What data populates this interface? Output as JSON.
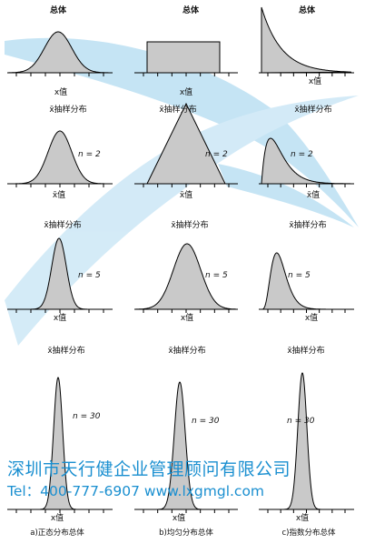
{
  "figure": {
    "columns": [
      {
        "population_label": "总体",
        "caption": "a)正态分布总体"
      },
      {
        "population_label": "总体",
        "caption": "b)均匀分布总体"
      },
      {
        "population_label": "总体",
        "caption": "c)指数分布总体"
      }
    ],
    "rows": [
      {
        "title": "总体",
        "axis_label": "x值"
      },
      {
        "title": "x̄抽样分布",
        "axis_label": "x̄值",
        "n_label": "n = 2"
      },
      {
        "title": "x̄抽样分布",
        "axis_label": "x值",
        "n_label": "n = 5"
      },
      {
        "title": "x̄抽样分布",
        "axis_label": "x值",
        "n_label": "n = 30"
      }
    ]
  },
  "watermark": {
    "line1": "深圳市天行健企业管理顾问有限公司",
    "line2": "Tel：400-777-6907 www.lxgmgl.com"
  },
  "colors": {
    "fill": "#c9c9c9",
    "watermark": "#1a8fd0",
    "swoosh": "#7fc4e8"
  }
}
